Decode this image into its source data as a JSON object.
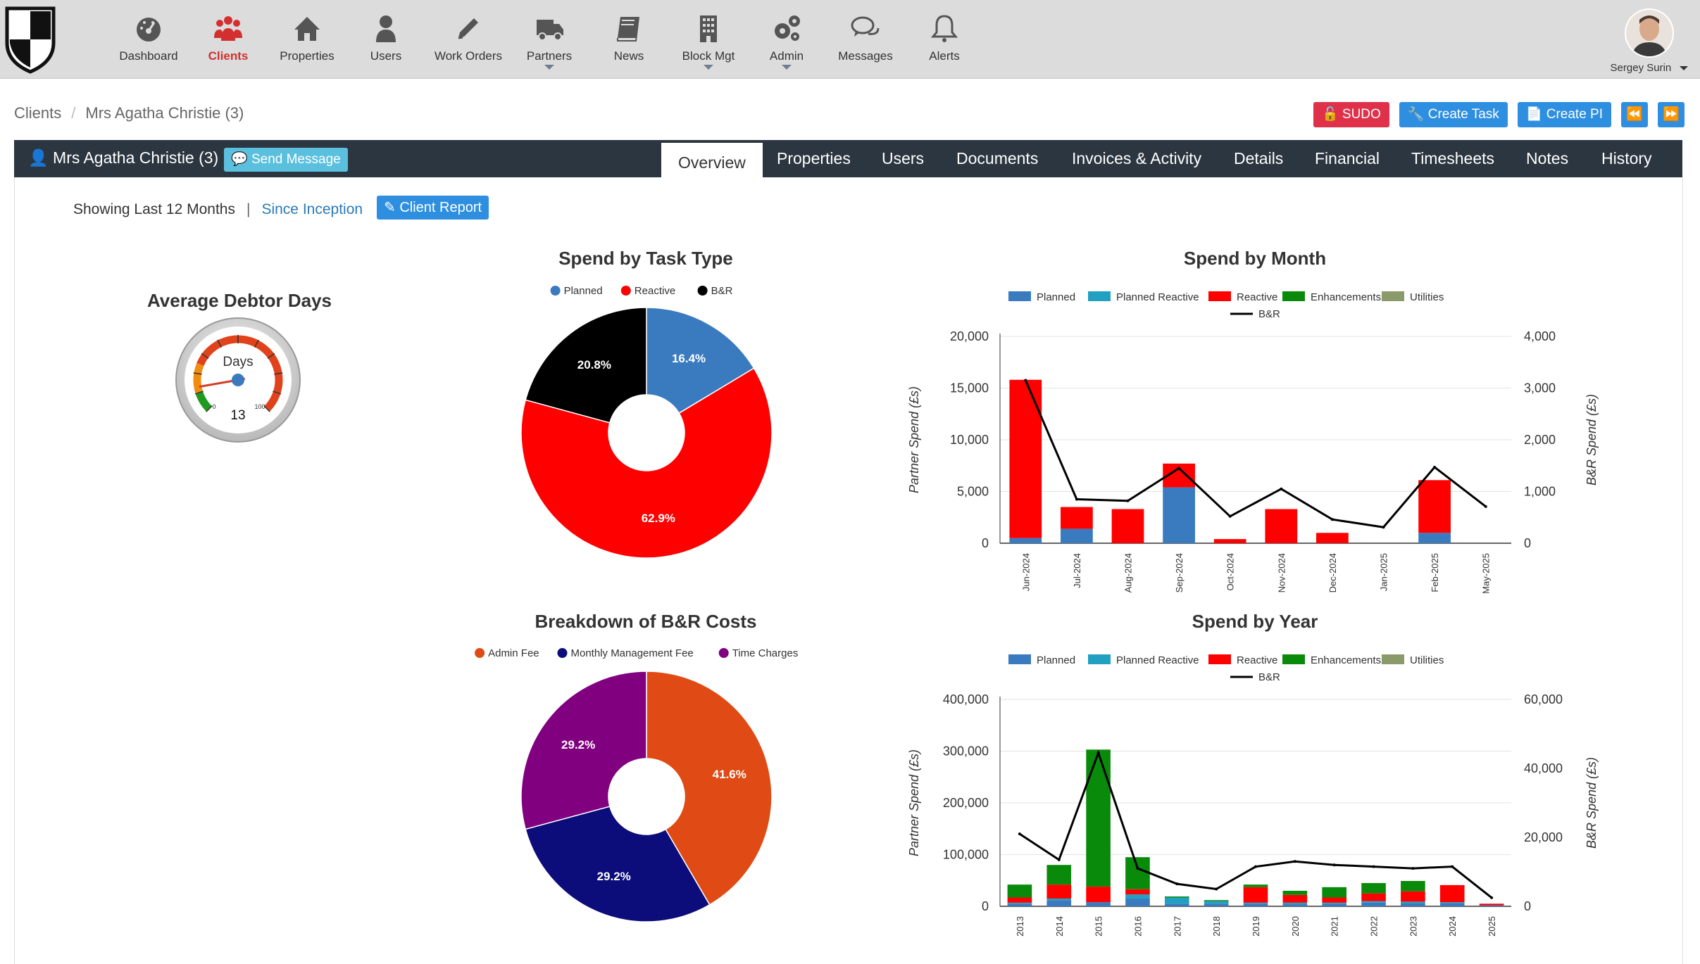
{
  "nav": {
    "items": [
      {
        "label": "Dashboard",
        "icon": "dashboard-icon"
      },
      {
        "label": "Clients",
        "icon": "clients-icon",
        "active": true
      },
      {
        "label": "Properties",
        "icon": "home-icon"
      },
      {
        "label": "Users",
        "icon": "user-icon"
      },
      {
        "label": "Work Orders",
        "icon": "pencil-icon"
      },
      {
        "label": "Partners",
        "icon": "truck-icon",
        "dropdown": true
      },
      {
        "label": "News",
        "icon": "book-icon"
      },
      {
        "label": "Block Mgt",
        "icon": "building-icon",
        "dropdown": true
      },
      {
        "label": "Admin",
        "icon": "gears-icon",
        "dropdown": true
      },
      {
        "label": "Messages",
        "icon": "comments-icon"
      },
      {
        "label": "Alerts",
        "icon": "bell-icon"
      }
    ],
    "user": {
      "name": "Sergey Surin"
    }
  },
  "breadcrumb": {
    "root": "Clients",
    "current": "Mrs Agatha Christie (3)"
  },
  "actions": {
    "sudo": "SUDO",
    "create_task": "Create Task",
    "create_pi": "Create PI"
  },
  "client": {
    "name": "Mrs Agatha Christie (3)",
    "send_message": "Send Message",
    "tabs": [
      "Overview",
      "Properties",
      "Users",
      "Documents",
      "Invoices & Activity",
      "Details",
      "Financial",
      "Timesheets",
      "Notes",
      "History"
    ],
    "active_tab": "Overview"
  },
  "filter": {
    "showing": "Showing Last 12 Months",
    "since": "Since Inception",
    "client_report": "Client Report"
  },
  "colors": {
    "planned": "#3a7abf",
    "planned_reactive": "#21a0c2",
    "reactive": "#ff0000",
    "enhancements": "#0a8a0a",
    "utilities": "#8a9a6a",
    "br": "#000000",
    "admin_fee": "#e04a14",
    "monthly_fee": "#0c0c7a",
    "time_charges": "#800080"
  },
  "chart_data": [
    {
      "type": "gauge",
      "title": "Average Debtor Days",
      "label": "Days",
      "value": 13,
      "min_label": "0",
      "max_label": "100"
    },
    {
      "type": "pie",
      "title": "Spend by Task Type",
      "labels": [
        "Planned",
        "Reactive",
        "B&R"
      ],
      "values": [
        16.4,
        62.9,
        20.8
      ],
      "value_labels": [
        "16.4%",
        "62.9%",
        "20.8%"
      ],
      "legend": "top"
    },
    {
      "type": "pie",
      "title": "Breakdown of B&R Costs",
      "labels": [
        "Admin Fee",
        "Monthly Management Fee",
        "Time Charges"
      ],
      "values": [
        41.6,
        29.2,
        29.2
      ],
      "value_labels": [
        "41.6%",
        "29.2%",
        "29.2%"
      ],
      "legend": "top"
    },
    {
      "type": "bar",
      "title": "Spend by Month",
      "categories": [
        "Jun-2024",
        "Jul-2024",
        "Aug-2024",
        "Sep-2024",
        "Oct-2024",
        "Nov-2024",
        "Dec-2024",
        "Jan-2025",
        "Feb-2025",
        "May-2025"
      ],
      "ylabel": "Partner Spend (£s)",
      "y2label": "B&R Spend (£s)",
      "ylim": [
        0,
        20000
      ],
      "y2lim": [
        0,
        4000
      ],
      "yticks": [
        "0",
        "5,000",
        "10,000",
        "15,000",
        "20,000"
      ],
      "y2ticks": [
        "0",
        "1,000",
        "2,000",
        "3,000",
        "4,000"
      ],
      "legend_labels": [
        "Planned",
        "Planned Reactive",
        "Reactive",
        "Enhancements",
        "Utilities",
        "B&R"
      ],
      "series": [
        {
          "name": "Planned",
          "values": [
            500,
            1400,
            0,
            5400,
            0,
            0,
            0,
            0,
            1000,
            0
          ]
        },
        {
          "name": "Planned Reactive",
          "values": [
            0,
            0,
            0,
            0,
            0,
            0,
            0,
            0,
            0,
            0
          ]
        },
        {
          "name": "Reactive",
          "values": [
            15300,
            2100,
            3300,
            2300,
            400,
            3300,
            1000,
            0,
            5100,
            0
          ]
        },
        {
          "name": "Enhancements",
          "values": [
            0,
            0,
            0,
            0,
            0,
            0,
            0,
            0,
            0,
            0
          ]
        },
        {
          "name": "Utilities",
          "values": [
            0,
            0,
            0,
            0,
            0,
            0,
            0,
            0,
            0,
            0
          ]
        },
        {
          "name": "B&R",
          "values": [
            3150,
            850,
            820,
            1450,
            520,
            1050,
            460,
            310,
            1470,
            710
          ]
        }
      ]
    },
    {
      "type": "bar",
      "title": "Spend by Year",
      "categories": [
        "2013",
        "2014",
        "2015",
        "2016",
        "2017",
        "2018",
        "2019",
        "2020",
        "2021",
        "2022",
        "2023",
        "2024",
        "2025"
      ],
      "ylabel": "Partner Spend (£s)",
      "y2label": "B&R Spend (£s)",
      "ylim": [
        0,
        400000
      ],
      "y2lim": [
        0,
        60000
      ],
      "yticks": [
        "0",
        "100,000",
        "200,000",
        "300,000",
        "400,000"
      ],
      "y2ticks": [
        "0",
        "20,000",
        "40,000",
        "60,000"
      ],
      "legend_labels": [
        "Planned",
        "Planned Reactive",
        "Reactive",
        "Enhancements",
        "Utilities",
        "B&R"
      ],
      "series": [
        {
          "name": "Planned",
          "values": [
            5000,
            12000,
            8000,
            15000,
            5000,
            5000,
            5000,
            4000,
            5000,
            7000,
            6000,
            6000,
            2000
          ]
        },
        {
          "name": "Planned Reactive",
          "values": [
            2000,
            3000,
            0,
            8000,
            12000,
            5000,
            2000,
            3000,
            2000,
            3000,
            3000,
            2000,
            0
          ]
        },
        {
          "name": "Reactive",
          "values": [
            10000,
            27000,
            30000,
            10000,
            0,
            0,
            30000,
            15000,
            10000,
            15000,
            20000,
            33000,
            3000
          ]
        },
        {
          "name": "Enhancements",
          "values": [
            25000,
            38000,
            265000,
            62000,
            2000,
            2000,
            5000,
            8000,
            20000,
            20000,
            20000,
            0,
            0
          ]
        },
        {
          "name": "Utilities",
          "values": [
            0,
            0,
            0,
            0,
            0,
            0,
            0,
            0,
            0,
            0,
            0,
            0,
            0
          ]
        },
        {
          "name": "B&R",
          "values": [
            21000,
            13500,
            44500,
            11000,
            6500,
            5000,
            11500,
            13000,
            12000,
            11500,
            11000,
            11500,
            2500
          ]
        }
      ]
    }
  ]
}
